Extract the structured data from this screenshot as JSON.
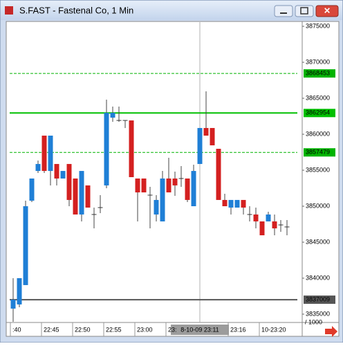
{
  "chart_data": {
    "type": "candlestick",
    "title": "S.FAST - Fastenal Co, 1 Min",
    "categories": [
      ":40",
      null,
      null,
      null,
      null,
      "22:45",
      null,
      null,
      null,
      null,
      "22:50",
      null,
      null,
      null,
      null,
      "22:55",
      null,
      null,
      null,
      null,
      "23:00",
      null,
      null,
      null,
      null,
      "23:",
      null,
      null,
      null,
      null,
      null,
      null,
      null,
      null,
      null,
      "23:16",
      null,
      null,
      null,
      null,
      "10-23:20",
      null,
      null,
      null,
      null
    ],
    "open": [
      3835770,
      3836350,
      3839040,
      3850770,
      3854900,
      3859810,
      3854900,
      3855870,
      3853850,
      3855870,
      3853850,
      3848850,
      3852890,
      3848850,
      3849810,
      3852890,
      3862310,
      3861920,
      3861920,
      3861920,
      3853850,
      3853850,
      3851540,
      3848850,
      3847890,
      3853850,
      3853850,
      3853850,
      3853850,
      3850000,
      3855870,
      3860870,
      3860870,
      3857980,
      3850870,
      3849810,
      3849810,
      3850870,
      3848850,
      3848850,
      3847890,
      3847890,
      3847890,
      3847400,
      3847120
    ],
    "high": [
      3840000,
      3840000,
      3850770,
      3853850,
      3856350,
      3859810,
      3859810,
      3855870,
      3854900,
      3855870,
      3853850,
      3854900,
      3852890,
      3849810,
      3851540,
      3864810,
      3863850,
      3863850,
      3861920,
      3861920,
      3853850,
      3853850,
      3852690,
      3851540,
      3854900,
      3856730,
      3854810,
      3855580,
      3853850,
      3855770,
      3860870,
      3865960,
      3860870,
      3857980,
      3851730,
      3850870,
      3850870,
      3850870,
      3850000,
      3849810,
      3847890,
      3849230,
      3848850,
      3848080,
      3848080
    ],
    "low": [
      3833940,
      3835960,
      3839040,
      3850580,
      3854620,
      3854620,
      3852890,
      3852890,
      3853850,
      3850000,
      3848850,
      3847890,
      3849810,
      3846920,
      3849040,
      3852500,
      3861730,
      3861730,
      3860870,
      3854040,
      3847890,
      3851920,
      3846920,
      3847890,
      3847890,
      3851920,
      3851440,
      3852690,
      3850580,
      3850000,
      3855870,
      3859810,
      3858460,
      3850870,
      3850000,
      3848850,
      3849810,
      3848850,
      3847890,
      3846920,
      3845960,
      3847890,
      3845960,
      3846440,
      3845960
    ],
    "close": [
      3837020,
      3840000,
      3850000,
      3853850,
      3855870,
      3854900,
      3859810,
      3853850,
      3854900,
      3850870,
      3848850,
      3854900,
      3849810,
      3848850,
      3849810,
      3862980,
      3862980,
      3861920,
      3861920,
      3854040,
      3851920,
      3851920,
      3851540,
      3850870,
      3853850,
      3851920,
      3852890,
      3853850,
      3850870,
      3854900,
      3860870,
      3859810,
      3858460,
      3850870,
      3850000,
      3850870,
      3850870,
      3849810,
      3848850,
      3847890,
      3845960,
      3848850,
      3846920,
      3847400,
      3847120
    ],
    "up_color": "#1f7fd6",
    "down_color": "#d42020",
    "ylim": [
      3833940,
      3875580
    ],
    "yticks": [
      3835000,
      3840000,
      3845000,
      3850000,
      3855000,
      3860000,
      3865000,
      3870000,
      3875000
    ],
    "y_unit_label": "/ 1000",
    "crosshair_label": "8-10-09 23:11",
    "levels": [
      {
        "value": 3868453,
        "style": "dashed",
        "color": "#00b400"
      },
      {
        "value": 3862954,
        "style": "solid",
        "color": "#00c000"
      },
      {
        "value": 3857479,
        "style": "dashed",
        "color": "#00b400"
      },
      {
        "value": 3837009,
        "style": "solid",
        "color": "#555555"
      }
    ]
  }
}
